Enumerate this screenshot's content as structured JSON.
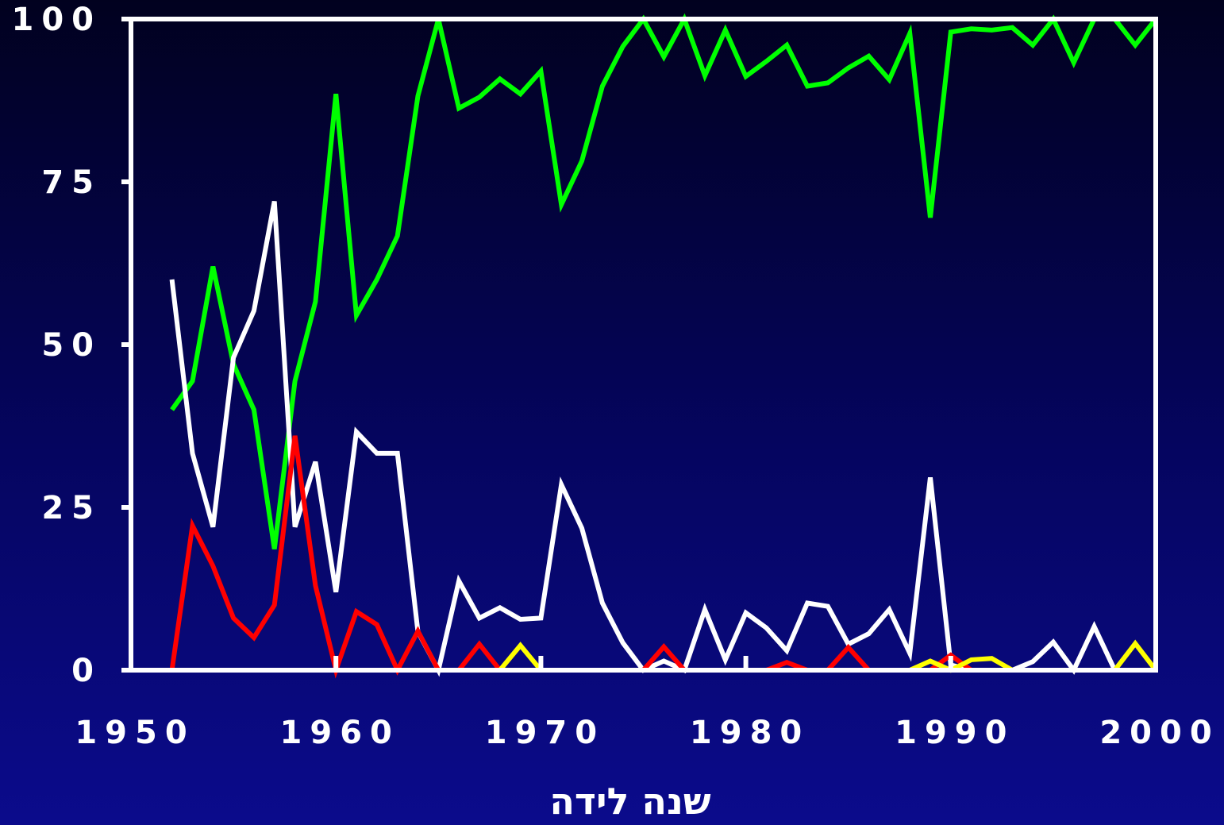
{
  "chart_data": {
    "type": "line",
    "title": "",
    "xlabel": "שנה לידה",
    "ylabel": "",
    "xlim": [
      1950,
      2000
    ],
    "ylim": [
      0,
      100
    ],
    "x_ticks": [
      "1950",
      "1960",
      "1970",
      "1980",
      "1990",
      "2000"
    ],
    "y_ticks": [
      "0",
      "25",
      "50",
      "75",
      "100"
    ],
    "grid": false,
    "legend": "none",
    "x": [
      1952,
      1953,
      1954,
      1955,
      1956,
      1957,
      1958,
      1959,
      1960,
      1961,
      1962,
      1963,
      1964,
      1965,
      1966,
      1967,
      1968,
      1969,
      1970,
      1971,
      1972,
      1973,
      1974,
      1975,
      1976,
      1977,
      1978,
      1979,
      1980,
      1981,
      1982,
      1983,
      1984,
      1985,
      1986,
      1987,
      1988,
      1989,
      1990,
      1991,
      1992,
      1993,
      1994,
      1995,
      1996,
      1997,
      1998,
      1999,
      2000
    ],
    "series": [
      {
        "color": "#00ff00",
        "values": [
          40,
          44.4,
          62,
          47,
          40,
          18.6,
          44.4,
          56.6,
          88.5,
          54.5,
          60,
          66.7,
          88.2,
          100,
          86.3,
          88,
          90.8,
          88.5,
          92,
          71.5,
          78.2,
          89.7,
          95.8,
          100,
          94.2,
          100,
          91.3,
          98.3,
          91.2,
          93.5,
          96,
          89.7,
          90.2,
          92.5,
          94.3,
          90.7,
          97.8,
          69.5,
          98,
          98.5,
          98.3,
          98.7,
          96,
          100,
          93.3,
          100,
          100,
          96,
          100
        ]
      },
      {
        "color": "#ffffff",
        "values": [
          60,
          33.3,
          22,
          48,
          55.2,
          72,
          22,
          32,
          12,
          36.6,
          33.3,
          33.3,
          5.9,
          0,
          13.7,
          8,
          9.6,
          7.8,
          8,
          28.5,
          21.8,
          10.3,
          4.2,
          0,
          1.4,
          0,
          9.3,
          1.6,
          8.8,
          6.5,
          3,
          10.3,
          9.8,
          4,
          5.6,
          9.3,
          2.6,
          29.6,
          0.8,
          0,
          0,
          0,
          1.3,
          4.3,
          0,
          6.7,
          0,
          0,
          0
        ]
      },
      {
        "color": "#ff0000",
        "values": [
          0,
          22.2,
          16,
          8,
          5,
          10,
          36,
          13,
          0,
          9,
          7,
          0,
          6,
          0,
          0,
          4,
          0,
          0,
          0,
          0,
          0,
          0,
          0,
          0,
          3.6,
          0,
          0,
          0,
          0,
          0,
          1.2,
          0,
          0,
          3.5,
          0,
          0,
          0,
          0,
          2.3,
          0,
          0,
          0,
          0,
          0,
          0,
          0,
          0,
          0,
          0
        ]
      },
      {
        "color": "#ffff00",
        "values": [
          0,
          0,
          0,
          0,
          0,
          0,
          0,
          0,
          0,
          0,
          0,
          0,
          0,
          0,
          0,
          0,
          0,
          3.8,
          0,
          0,
          0,
          0,
          0,
          0,
          0,
          0,
          0,
          0,
          0,
          0,
          0,
          0,
          0,
          0,
          0,
          0,
          0,
          1.4,
          0,
          1.6,
          1.8,
          0,
          0,
          0,
          0,
          0,
          0,
          4.1,
          0
        ]
      }
    ]
  }
}
